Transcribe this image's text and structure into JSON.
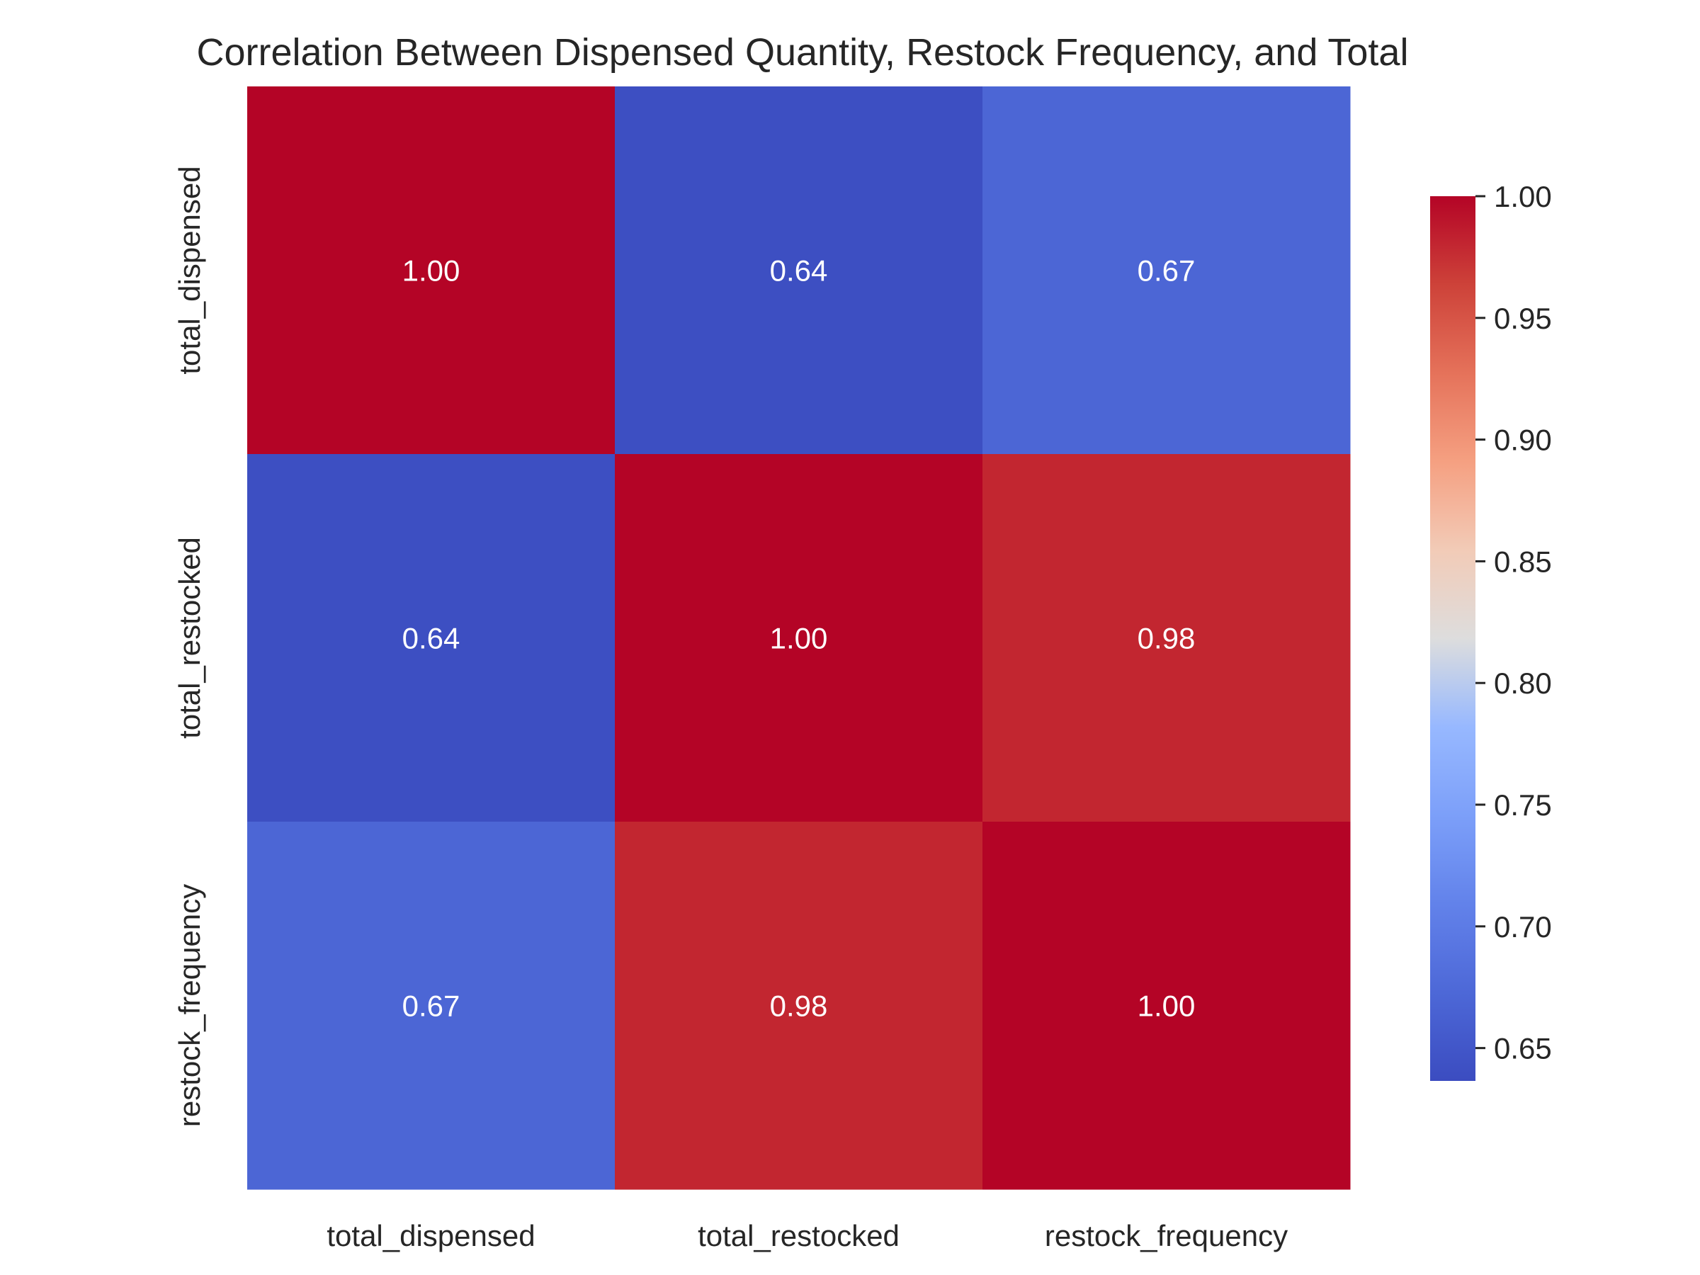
{
  "chart_data": {
    "type": "heatmap",
    "title": "Correlation Between Dispensed Quantity, Restock Frequency, and Total",
    "x_labels": [
      "total_dispensed",
      "total_restocked",
      "restock_frequency"
    ],
    "y_labels": [
      "total_dispensed",
      "total_restocked",
      "restock_frequency"
    ],
    "values": [
      [
        1.0,
        0.64,
        0.67
      ],
      [
        0.64,
        1.0,
        0.98
      ],
      [
        0.67,
        0.98,
        1.0
      ]
    ],
    "value_labels": [
      [
        "1.00",
        "0.64",
        "0.67"
      ],
      [
        "0.64",
        "1.00",
        "0.98"
      ],
      [
        "0.67",
        "0.98",
        "1.00"
      ]
    ],
    "colormap": "coolwarm",
    "vmin": 0.6365,
    "vmax": 1.0,
    "colorbar": {
      "ticks": [
        0.65,
        0.7,
        0.75,
        0.8,
        0.85,
        0.9,
        0.95,
        1.0
      ],
      "tick_labels": [
        "0.65",
        "0.70",
        "0.75",
        "0.80",
        "0.85",
        "0.90",
        "0.95",
        "1.00"
      ],
      "position": "right"
    },
    "grid": false,
    "xlabel": "",
    "ylabel": ""
  },
  "colors": {
    "text": "#262626",
    "annotation": "#ffffff",
    "background": "#ffffff"
  }
}
